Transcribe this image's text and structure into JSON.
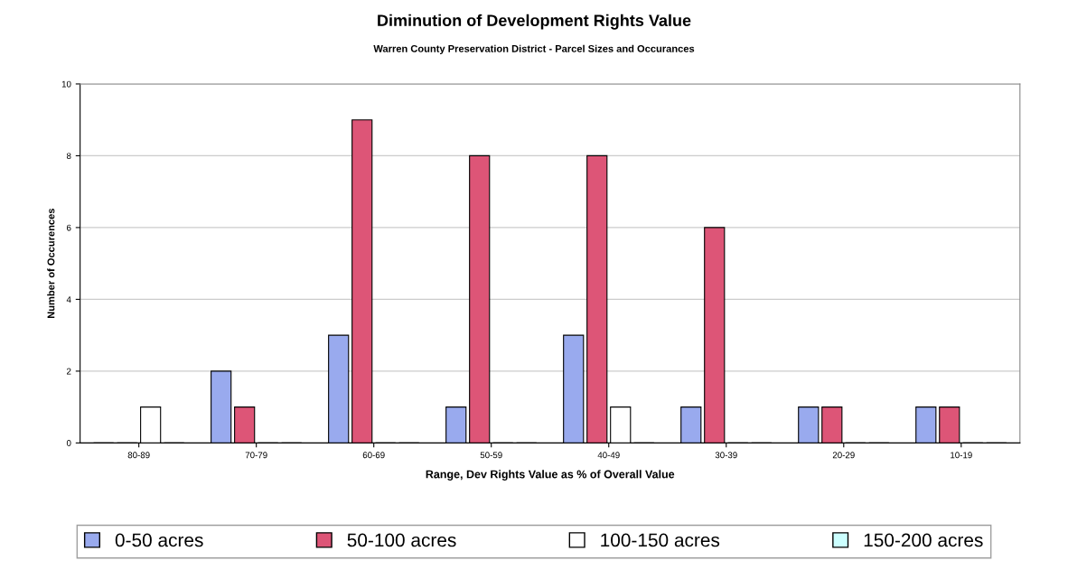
{
  "chart_data": {
    "type": "bar",
    "title": "Diminution of Development Rights Value",
    "subtitle": "Warren County Preservation District - Parcel Sizes and Occurances",
    "xlabel": "Range, Dev Rights Value as % of Overall Value",
    "ylabel": "Number of Occurences",
    "categories": [
      "80-89",
      "70-79",
      "60-69",
      "50-59",
      "40-49",
      "30-39",
      "20-29",
      "10-19"
    ],
    "series": [
      {
        "name": "0-50 acres",
        "color": "#99aaee",
        "values": [
          0,
          2,
          3,
          1,
          3,
          1,
          1,
          1
        ]
      },
      {
        "name": "50-100 acres",
        "color": "#dd5577",
        "values": [
          0,
          1,
          9,
          8,
          8,
          6,
          1,
          1
        ]
      },
      {
        "name": "100-150 acres",
        "color": "#ffffff",
        "values": [
          1,
          0,
          0,
          0,
          1,
          0,
          0,
          0
        ]
      },
      {
        "name": "150-200 acres",
        "color": "#ccffff",
        "values": [
          0,
          0,
          0,
          0,
          0,
          0,
          0,
          0
        ]
      }
    ],
    "ylim": [
      0,
      10
    ],
    "yticks": [
      0,
      2,
      4,
      6,
      8,
      10
    ],
    "grid": "y",
    "legend": "bottom"
  }
}
